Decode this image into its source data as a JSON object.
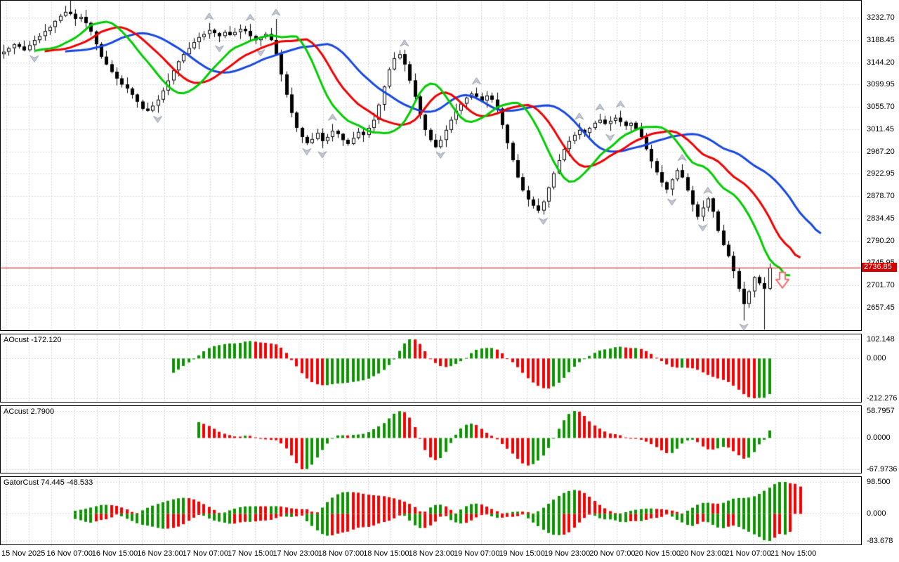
{
  "chart_data": {
    "type": "candlestick",
    "price_badge": "2736.85",
    "current_price": 2736.85,
    "price_axis": {
      "tick_labels": [
        "3232.70",
        "3188.45",
        "3144.20",
        "3099.95",
        "3055.70",
        "3011.45",
        "2967.20",
        "2922.95",
        "2878.70",
        "2834.45",
        "2790.20",
        "2745.95",
        "2701.70",
        "2657.45"
      ],
      "tick_values": [
        3232.7,
        3188.45,
        3144.2,
        3099.95,
        3055.7,
        3011.45,
        2967.2,
        2922.95,
        2878.7,
        2834.45,
        2790.2,
        2745.95,
        2701.7,
        2657.45
      ],
      "step": 44.25
    },
    "time_axis": {
      "labels": [
        "15 Nov 2025",
        "16 Nov 07:00",
        "16 Nov 15:00",
        "16 Nov 23:00",
        "17 Nov 07:00",
        "17 Nov 15:00",
        "17 Nov 23:00",
        "18 Nov 07:00",
        "18 Nov 15:00",
        "18 Nov 23:00",
        "19 Nov 07:00",
        "19 Nov 15:00",
        "19 Nov 23:00",
        "20 Nov 07:00",
        "20 Nov 15:00",
        "20 Nov 23:00",
        "21 Nov 07:00",
        "21 Nov 15:00"
      ]
    },
    "candles": {
      "first_open": 3160,
      "closes": [
        3165,
        3172,
        3180,
        3175,
        3168,
        3178,
        3188,
        3196,
        3206,
        3214,
        3226,
        3236,
        3244,
        3240,
        3230,
        3234,
        3222,
        3205,
        3180,
        3155,
        3140,
        3125,
        3112,
        3100,
        3092,
        3080,
        3066,
        3052,
        3048,
        3058,
        3070,
        3088,
        3108,
        3128,
        3146,
        3160,
        3172,
        3184,
        3194,
        3200,
        3208,
        3202,
        3196,
        3204,
        3198,
        3204,
        3210,
        3206,
        3196,
        3188,
        3194,
        3200,
        3188,
        3160,
        3120,
        3080,
        3044,
        3014,
        2996,
        2984,
        2992,
        3004,
        2988,
        2996,
        3008,
        3002,
        2990,
        2982,
        2994,
        3006,
        3000,
        3014,
        3030,
        3060,
        3096,
        3130,
        3152,
        3160,
        3140,
        3108,
        3076,
        3040,
        3010,
        2990,
        2976,
        2990,
        3010,
        3030,
        3048,
        3062,
        3074,
        3082,
        3076,
        3068,
        3078,
        3070,
        3052,
        3020,
        2984,
        2950,
        2916,
        2890,
        2872,
        2860,
        2850,
        2868,
        2896,
        2924,
        2950,
        2972,
        2988,
        3000,
        3010,
        3004,
        3014,
        3024,
        3030,
        3022,
        3028,
        3034,
        3026,
        3018,
        3024,
        3012,
        2996,
        2972,
        2948,
        2926,
        2906,
        2892,
        2912,
        2930,
        2916,
        2890,
        2862,
        2838,
        2856,
        2874,
        2848,
        2810,
        2782,
        2760,
        2730,
        2695,
        2665,
        2690,
        2718,
        2706,
        2695,
        2737
      ],
      "wick_pattern": [
        14,
        4,
        9,
        3,
        12,
        6,
        2,
        8
      ],
      "wick_overrides": {
        "13": {
          "high": 3266
        },
        "53": {
          "high": 3230
        },
        "104": {
          "low": 2845
        },
        "144": {
          "low": 2632
        },
        "148": {
          "low": 2614
        }
      },
      "bull_fill": "#ffffff",
      "bear_fill": "#000000",
      "outline": "#000000"
    },
    "alligator": {
      "jaw": {
        "period": 13,
        "shift": 10,
        "color": "#1747e0"
      },
      "teeth": {
        "period": 8,
        "shift": 6,
        "color": "#ee0000"
      },
      "lips": {
        "period": 5,
        "shift": 4,
        "color": "#00cc00"
      }
    },
    "fractals": {
      "color_fill": "#c4c9d2",
      "color_edge": "#98a0ac"
    },
    "price_line": {
      "color": "#c80000"
    },
    "sell_arrow": {
      "index": 151.5,
      "price": 2712,
      "stroke": "#f07070"
    },
    "panels": [
      {
        "id": "ao",
        "name": "AOcust",
        "label": "AOcust -172.120",
        "value": -172.12,
        "tick_labels": [
          "102.148",
          "0.000",
          "-212.276"
        ],
        "tick_values": [
          102.148,
          0,
          -212.276
        ],
        "max": 102.148,
        "min": -212.276
      },
      {
        "id": "ac",
        "name": "ACcust",
        "label": "ACcust 2.7900",
        "value": 2.79,
        "tick_labels": [
          "58.7957",
          "0.0000",
          "-67.9736"
        ],
        "tick_values": [
          58.7957,
          0,
          -67.9736
        ],
        "max": 58.7957,
        "min": -67.9736
      },
      {
        "id": "gator",
        "name": "GatorCust",
        "label": "GatorCust 74.445 -48.533",
        "values": [
          74.445,
          -48.533
        ],
        "tick_labels": [
          "98.500",
          "0.000",
          "-83.678"
        ],
        "tick_values": [
          98.5,
          0,
          -83.678
        ],
        "max": 98.5,
        "min": -83.678
      }
    ],
    "histogram_colors": {
      "up": "#0c9400",
      "down": "#f40000"
    },
    "grid_color": "#d8d8d8"
  }
}
